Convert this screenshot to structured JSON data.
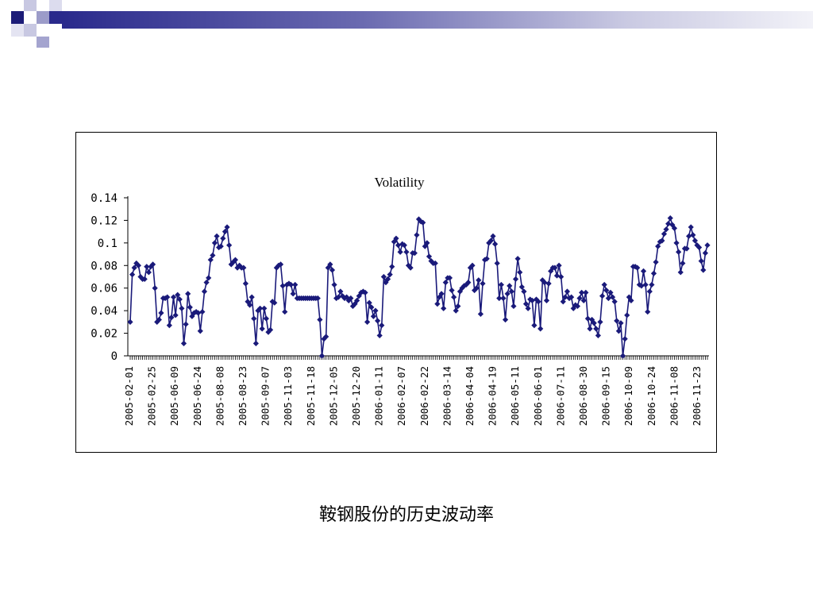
{
  "colors": {
    "series": "#1a1a7a",
    "banner_dark": "#2a2a8c",
    "deco_light": "#9c9cc9"
  },
  "caption": "鞍钢股份的历史波动率",
  "chart_data": {
    "type": "line",
    "title": "Volatility",
    "xlabel": "",
    "ylabel": "",
    "ylim": [
      0,
      0.14
    ],
    "yticks": [
      0,
      0.02,
      0.04,
      0.06,
      0.08,
      0.1,
      0.12,
      0.14
    ],
    "ytick_labels": [
      "0",
      "0.02",
      "0.04",
      "0.06",
      "0.08",
      "0.1",
      "0.12",
      "0.14"
    ],
    "x_tick_labels": [
      "2005-02-01",
      "2005-02-25",
      "2005-06-09",
      "2005-06-24",
      "2005-08-08",
      "2005-08-23",
      "2005-09-07",
      "2005-11-03",
      "2005-11-18",
      "2005-12-05",
      "2005-12-20",
      "2006-01-11",
      "2006-02-07",
      "2006-02-22",
      "2006-03-14",
      "2006-04-04",
      "2006-04-19",
      "2006-05-11",
      "2006-06-01",
      "2006-07-11",
      "2006-08-30",
      "2006-09-15",
      "2006-10-09",
      "2006-10-24",
      "2006-11-08",
      "2006-11-23"
    ],
    "grid": false,
    "legend": "none",
    "marker": "diamond",
    "series": [
      {
        "name": "",
        "values": [
          0.03,
          0.072,
          0.078,
          0.082,
          0.08,
          0.07,
          0.068,
          0.068,
          0.079,
          0.074,
          0.079,
          0.081,
          0.06,
          0.03,
          0.032,
          0.038,
          0.051,
          0.051,
          0.052,
          0.027,
          0.034,
          0.052,
          0.036,
          0.054,
          0.05,
          0.042,
          0.011,
          0.028,
          0.055,
          0.043,
          0.035,
          0.038,
          0.039,
          0.038,
          0.022,
          0.039,
          0.057,
          0.065,
          0.069,
          0.085,
          0.089,
          0.1,
          0.106,
          0.096,
          0.097,
          0.104,
          0.11,
          0.114,
          0.098,
          0.081,
          0.083,
          0.085,
          0.078,
          0.08,
          0.078,
          0.078,
          0.064,
          0.048,
          0.045,
          0.052,
          0.033,
          0.011,
          0.04,
          0.042,
          0.024,
          0.042,
          0.033,
          0.021,
          0.023,
          0.048,
          0.047,
          0.078,
          0.08,
          0.081,
          0.062,
          0.039,
          0.063,
          0.064,
          0.063,
          0.055,
          0.063,
          0.051,
          0.051,
          0.051,
          0.051,
          0.051,
          0.051,
          0.051,
          0.051,
          0.051,
          0.051,
          0.051,
          0.032,
          0.0,
          0.015,
          0.017,
          0.078,
          0.081,
          0.076,
          0.063,
          0.051,
          0.052,
          0.057,
          0.053,
          0.051,
          0.052,
          0.049,
          0.051,
          0.044,
          0.046,
          0.049,
          0.053,
          0.056,
          0.057,
          0.056,
          0.03,
          0.047,
          0.043,
          0.035,
          0.04,
          0.031,
          0.018,
          0.027,
          0.07,
          0.065,
          0.068,
          0.072,
          0.079,
          0.101,
          0.104,
          0.098,
          0.092,
          0.099,
          0.098,
          0.092,
          0.08,
          0.078,
          0.091,
          0.091,
          0.107,
          0.121,
          0.119,
          0.118,
          0.097,
          0.1,
          0.088,
          0.084,
          0.082,
          0.082,
          0.046,
          0.052,
          0.055,
          0.042,
          0.065,
          0.069,
          0.069,
          0.058,
          0.052,
          0.04,
          0.044,
          0.057,
          0.06,
          0.062,
          0.063,
          0.065,
          0.078,
          0.08,
          0.058,
          0.06,
          0.067,
          0.037,
          0.064,
          0.085,
          0.086,
          0.1,
          0.102,
          0.106,
          0.099,
          0.082,
          0.051,
          0.063,
          0.051,
          0.032,
          0.055,
          0.062,
          0.057,
          0.044,
          0.068,
          0.086,
          0.074,
          0.061,
          0.057,
          0.046,
          0.042,
          0.05,
          0.049,
          0.027,
          0.05,
          0.048,
          0.024,
          0.067,
          0.065,
          0.049,
          0.064,
          0.075,
          0.078,
          0.078,
          0.071,
          0.08,
          0.07,
          0.048,
          0.052,
          0.057,
          0.051,
          0.052,
          0.042,
          0.045,
          0.044,
          0.051,
          0.056,
          0.049,
          0.056,
          0.033,
          0.024,
          0.032,
          0.029,
          0.024,
          0.018,
          0.03,
          0.053,
          0.063,
          0.058,
          0.051,
          0.056,
          0.052,
          0.048,
          0.031,
          0.022,
          0.029,
          0.0,
          0.015,
          0.036,
          0.052,
          0.049,
          0.079,
          0.079,
          0.078,
          0.063,
          0.062,
          0.075,
          0.063,
          0.039,
          0.057,
          0.063,
          0.073,
          0.083,
          0.097,
          0.101,
          0.102,
          0.108,
          0.112,
          0.117,
          0.122,
          0.116,
          0.113,
          0.1,
          0.092,
          0.074,
          0.082,
          0.095,
          0.095,
          0.106,
          0.114,
          0.107,
          0.102,
          0.098,
          0.096,
          0.084,
          0.076,
          0.091,
          0.098
        ]
      }
    ]
  }
}
